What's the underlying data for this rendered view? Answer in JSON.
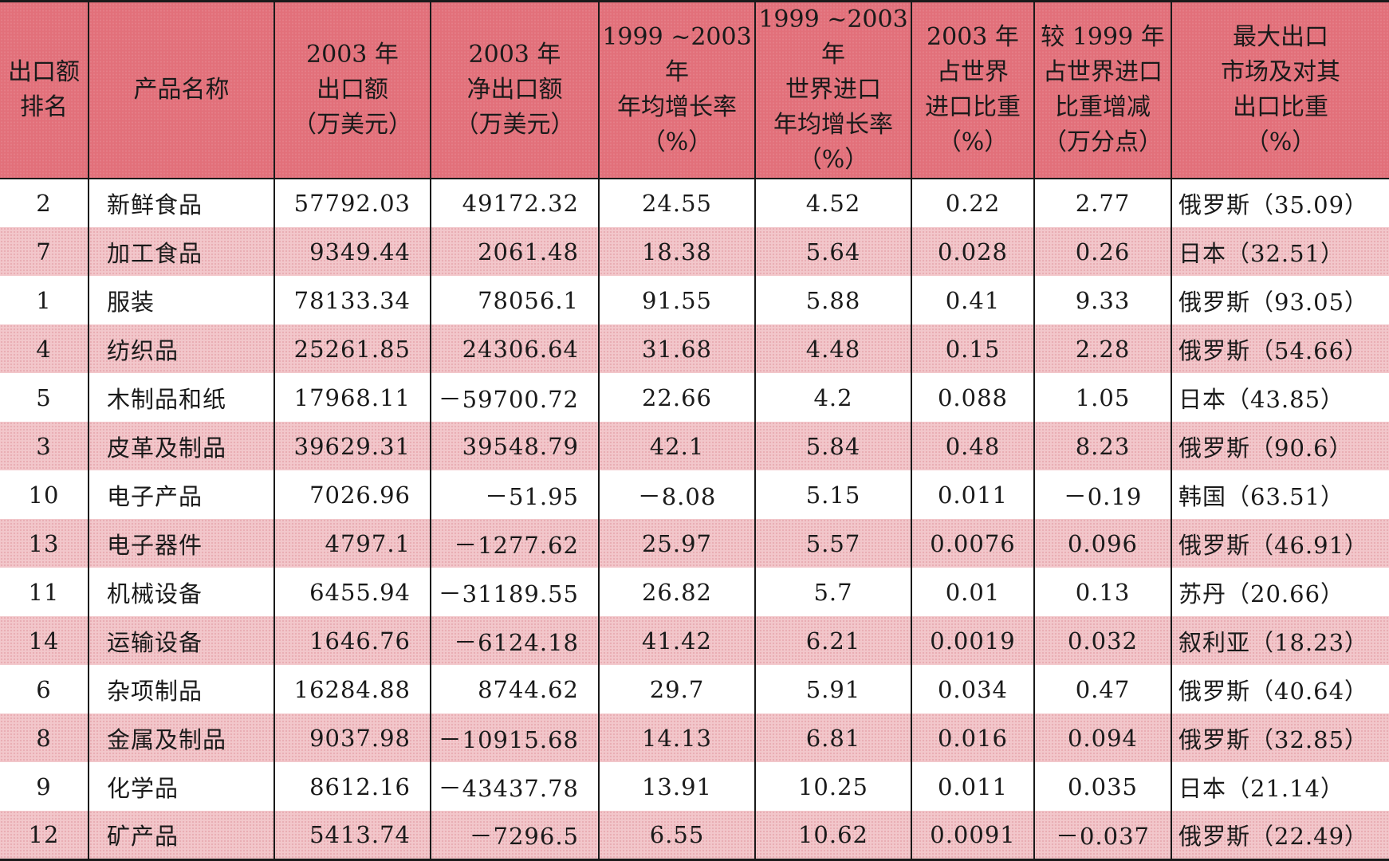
{
  "headers": [
    "出口额\n排名",
    "产品名称",
    "2003 年\n出口额\n（万美元）",
    "2003 年\n净出口额\n（万美元）",
    "1999 ~2003 年\n年均增长率\n（%）",
    "1999 ~2003 年\n世界进口\n年均增长率\n（%）",
    "2003 年\n占世界\n进口比重\n（%）",
    "较 1999 年\n占世界进口\n比重增减\n（万分点）",
    "最大出口\n市场及对其\n出口比重\n（%）"
  ],
  "rows": [
    [
      "2",
      "新鲜食品",
      "57792.03",
      "49172.32",
      "24.55",
      "4.52",
      "0.22",
      "2.77",
      "俄罗斯（35.09）"
    ],
    [
      "7",
      "加工食品",
      "9349.44",
      "2061.48",
      "18.38",
      "5.64",
      "0.028",
      "0.26",
      "日本（32.51）"
    ],
    [
      "1",
      "服装",
      "78133.34",
      "78056.1",
      "91.55",
      "5.88",
      "0.41",
      "9.33",
      "俄罗斯（93.05）"
    ],
    [
      "4",
      "纺织品",
      "25261.85",
      "24306.64",
      "31.68",
      "4.48",
      "0.15",
      "2.28",
      "俄罗斯（54.66）"
    ],
    [
      "5",
      "木制品和纸",
      "17968.11",
      "－59700.72",
      "22.66",
      "4.2",
      "0.088",
      "1.05",
      "日本（43.85）"
    ],
    [
      "3",
      "皮革及制品",
      "39629.31",
      "39548.79",
      "42.1",
      "5.84",
      "0.48",
      "8.23",
      "俄罗斯（90.6）"
    ],
    [
      "10",
      "电子产品",
      "7026.96",
      "－51.95",
      "－8.08",
      "5.15",
      "0.011",
      "－0.19",
      "韩国（63.51）"
    ],
    [
      "13",
      "电子器件",
      "4797.1",
      "－1277.62",
      "25.97",
      "5.57",
      "0.0076",
      "0.096",
      "俄罗斯（46.91）"
    ],
    [
      "11",
      "机械设备",
      "6455.94",
      "－31189.55",
      "26.82",
      "5.7",
      "0.01",
      "0.13",
      "苏丹（20.66）"
    ],
    [
      "14",
      "运输设备",
      "1646.76",
      "－6124.18",
      "41.42",
      "6.21",
      "0.0019",
      "0.032",
      "叙利亚（18.23）"
    ],
    [
      "6",
      "杂项制品",
      "16284.88",
      "8744.62",
      "29.7",
      "5.91",
      "0.034",
      "0.47",
      "俄罗斯（40.64）"
    ],
    [
      "8",
      "金属及制品",
      "9037.98",
      "－10915.68",
      "14.13",
      "6.81",
      "0.016",
      "0.094",
      "俄罗斯（32.85）"
    ],
    [
      "9",
      "化学品",
      "8612.16",
      "－43437.78",
      "13.91",
      "10.25",
      "0.011",
      "0.035",
      "日本（21.14）"
    ],
    [
      "12",
      "矿产品",
      "5413.74",
      "－7296.5",
      "6.55",
      "10.62",
      "0.0091",
      "－0.037",
      "俄罗斯（22.49）"
    ]
  ],
  "colors": {
    "header_bg": "#e2707a",
    "stripe_bg": "#f2c7cb",
    "rule": "#1a1a1a"
  }
}
